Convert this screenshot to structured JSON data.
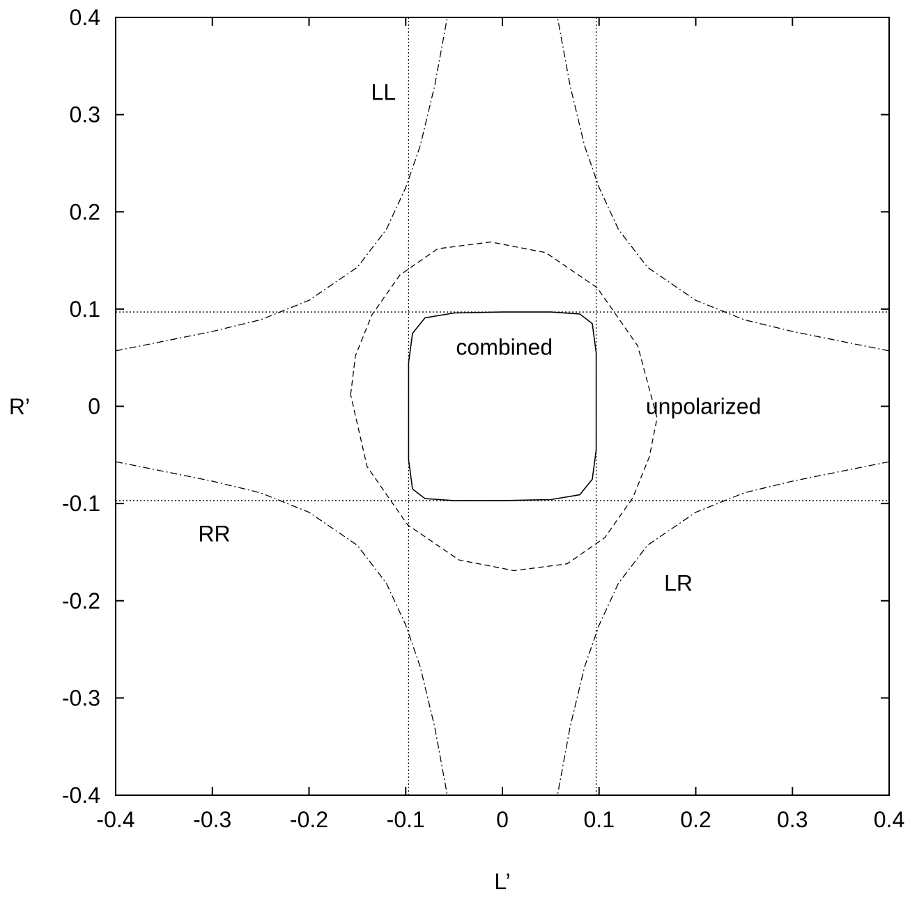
{
  "chart_data": {
    "type": "line",
    "xlabel": "L’",
    "ylabel": "R’",
    "xlim": [
      -0.4,
      0.4
    ],
    "ylim": [
      -0.4,
      0.4
    ],
    "xticks": [
      -0.4,
      -0.3,
      -0.2,
      -0.1,
      0,
      0.1,
      0.2,
      0.3,
      0.4
    ],
    "yticks": [
      -0.4,
      -0.3,
      -0.2,
      -0.1,
      0,
      0.1,
      0.2,
      0.3,
      0.4
    ],
    "xtick_labels": [
      "-0.4",
      "-0.3",
      "-0.2",
      "-0.1",
      "0",
      "0.1",
      "0.2",
      "0.3",
      "0.4"
    ],
    "ytick_labels": [
      "-0.4",
      "-0.3",
      "-0.2",
      "-0.1",
      "0",
      "0.1",
      "0.2",
      "0.3",
      "0.4"
    ],
    "grid": false,
    "legend": "none",
    "series": [
      {
        "name": "combined",
        "style": "solid",
        "points": [
          [
            -0.097,
            0.0
          ],
          [
            -0.097,
            0.045
          ],
          [
            -0.093,
            0.075
          ],
          [
            -0.08,
            0.091
          ],
          [
            -0.05,
            0.096
          ],
          [
            0.0,
            0.097
          ],
          [
            0.05,
            0.097
          ],
          [
            0.08,
            0.095
          ],
          [
            0.093,
            0.085
          ],
          [
            0.097,
            0.055
          ],
          [
            0.097,
            0.0
          ],
          [
            0.097,
            -0.045
          ],
          [
            0.093,
            -0.075
          ],
          [
            0.08,
            -0.091
          ],
          [
            0.05,
            -0.096
          ],
          [
            0.0,
            -0.097
          ],
          [
            -0.05,
            -0.097
          ],
          [
            -0.08,
            -0.095
          ],
          [
            -0.093,
            -0.085
          ],
          [
            -0.097,
            -0.055
          ],
          [
            -0.097,
            0.0
          ]
        ]
      },
      {
        "name": "unpolarized",
        "style": "dashed",
        "points": [
          [
            -0.157,
            0.012
          ],
          [
            -0.152,
            0.052
          ],
          [
            -0.135,
            0.094
          ],
          [
            -0.106,
            0.135
          ],
          [
            -0.067,
            0.162
          ],
          [
            -0.012,
            0.169
          ],
          [
            0.045,
            0.158
          ],
          [
            0.098,
            0.122
          ],
          [
            0.14,
            0.062
          ],
          [
            0.16,
            -0.012
          ],
          [
            0.152,
            -0.052
          ],
          [
            0.135,
            -0.094
          ],
          [
            0.106,
            -0.135
          ],
          [
            0.067,
            -0.162
          ],
          [
            0.012,
            -0.169
          ],
          [
            -0.045,
            -0.158
          ],
          [
            -0.098,
            -0.122
          ],
          [
            -0.14,
            -0.062
          ],
          [
            -0.157,
            0.012
          ]
        ]
      },
      {
        "name": "LL",
        "style": "dashdot",
        "branches": [
          [
            [
              -0.4,
              0.057
            ],
            [
              -0.35,
              0.067
            ],
            [
              -0.3,
              0.077
            ],
            [
              -0.25,
              0.089
            ],
            [
              -0.2,
              0.109
            ],
            [
              -0.15,
              0.143
            ],
            [
              -0.12,
              0.182
            ],
            [
              -0.1,
              0.225
            ],
            [
              -0.085,
              0.268
            ],
            [
              -0.07,
              0.33
            ],
            [
              -0.057,
              0.4
            ]
          ],
          [
            [
              0.4,
              -0.057
            ],
            [
              0.35,
              -0.067
            ],
            [
              0.3,
              -0.077
            ],
            [
              0.25,
              -0.089
            ],
            [
              0.2,
              -0.109
            ],
            [
              0.15,
              -0.143
            ],
            [
              0.12,
              -0.182
            ],
            [
              0.1,
              -0.225
            ],
            [
              0.085,
              -0.268
            ],
            [
              0.07,
              -0.33
            ],
            [
              0.057,
              -0.4
            ]
          ]
        ]
      },
      {
        "name": "LR",
        "style": "dashdot",
        "branches": [
          [
            [
              -0.4,
              -0.057
            ],
            [
              -0.35,
              -0.067
            ],
            [
              -0.3,
              -0.077
            ],
            [
              -0.25,
              -0.089
            ],
            [
              -0.2,
              -0.109
            ],
            [
              -0.15,
              -0.143
            ],
            [
              -0.12,
              -0.182
            ],
            [
              -0.1,
              -0.225
            ],
            [
              -0.085,
              -0.268
            ],
            [
              -0.07,
              -0.33
            ],
            [
              -0.057,
              -0.4
            ]
          ],
          [
            [
              0.4,
              0.057
            ],
            [
              0.35,
              0.067
            ],
            [
              0.3,
              0.077
            ],
            [
              0.25,
              0.089
            ],
            [
              0.2,
              0.109
            ],
            [
              0.15,
              0.143
            ],
            [
              0.12,
              0.182
            ],
            [
              0.1,
              0.225
            ],
            [
              0.085,
              0.268
            ],
            [
              0.07,
              0.33
            ],
            [
              0.057,
              0.4
            ]
          ]
        ]
      },
      {
        "name": "RR",
        "style": "dotted",
        "orientation": "horizontal",
        "values": [
          0.097,
          -0.097
        ]
      },
      {
        "name": "RR",
        "style": "dotted",
        "orientation": "vertical",
        "values": [
          -0.097,
          0.097
        ]
      }
    ],
    "annotations": [
      {
        "text": "LL",
        "x": -0.123,
        "y": 0.323
      },
      {
        "text": "combined",
        "x": 0.002,
        "y": 0.061
      },
      {
        "text": "unpolarized",
        "x": 0.208,
        "y": 0.0
      },
      {
        "text": "RR",
        "x": -0.298,
        "y": -0.131
      },
      {
        "text": "LR",
        "x": 0.182,
        "y": -0.182
      }
    ]
  }
}
